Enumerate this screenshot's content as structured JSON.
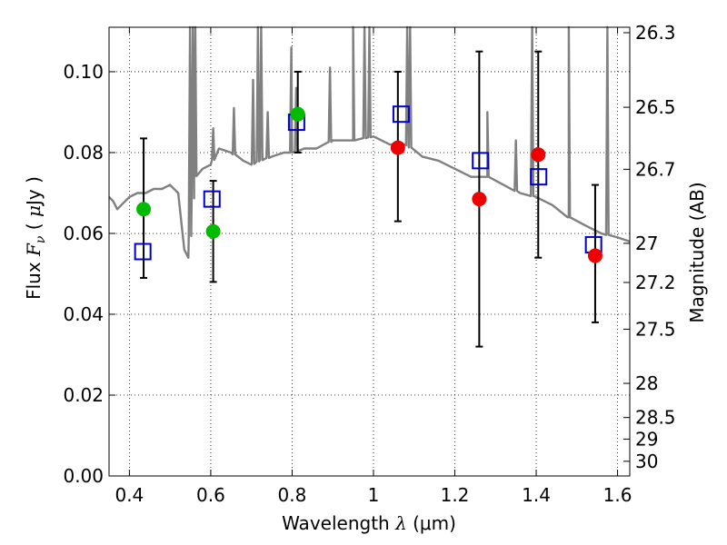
{
  "chart_data": {
    "type": "scatter",
    "xlabel": "Wavelength  λ (μm)",
    "xlabel_parts": {
      "text": "Wavelength  ",
      "symbol": "λ",
      "unit": " (μm)"
    },
    "ylabel": "Flux  Fν (  μJy )",
    "ylabel_parts": {
      "text": "Flux  ",
      "symbol": "F",
      "subscript": "ν",
      "unit_open": " (  ",
      "unit_symbol": "μ",
      "unit": "Jy )"
    },
    "y2label": "Magnitude (AB)",
    "xlim": [
      0.35,
      1.63
    ],
    "ylim": [
      0.0,
      0.111
    ],
    "x_ticks": [
      0.4,
      0.6,
      0.8,
      1.0,
      1.2,
      1.4,
      1.6
    ],
    "x_tick_labels": [
      "0.4",
      "0.6",
      "0.8",
      "1",
      "1.2",
      "1.4",
      "1.6"
    ],
    "y_ticks": [
      0.0,
      0.02,
      0.04,
      0.06,
      0.08,
      0.1
    ],
    "y_tick_labels": [
      "0.00",
      "0.02",
      "0.04",
      "0.06",
      "0.08",
      "0.10"
    ],
    "y2_ticks": [
      {
        "mag": 26.3,
        "label": "26.3"
      },
      {
        "mag": 26.5,
        "label": "26.5"
      },
      {
        "mag": 26.7,
        "label": "26.7"
      },
      {
        "mag": 27.0,
        "label": "27"
      },
      {
        "mag": 27.2,
        "label": "27.2"
      },
      {
        "mag": 27.5,
        "label": "27.5"
      },
      {
        "mag": 28.0,
        "label": "28"
      },
      {
        "mag": 28.5,
        "label": "28.5"
      },
      {
        "mag": 29.0,
        "label": "29"
      },
      {
        "mag": 30.0,
        "label": "30"
      }
    ],
    "grid": true,
    "colors": {
      "model": "#808080",
      "error_bars": "#000000",
      "green_points": "#00bb00",
      "red_points": "#ee0000",
      "blue_squares": "#0000cc"
    },
    "observed": {
      "x": [
        0.435,
        0.606,
        0.814,
        1.06,
        1.26,
        1.405,
        1.545
      ],
      "y": [
        0.066,
        0.0605,
        0.0895,
        0.0812,
        0.0685,
        0.0795,
        0.0545
      ],
      "colors": [
        "green",
        "green",
        "green",
        "red",
        "red",
        "red",
        "red"
      ],
      "yerr_low": [
        0.049,
        0.048,
        0.08,
        0.063,
        0.032,
        0.054,
        0.038
      ],
      "yerr_high": [
        0.0835,
        0.073,
        0.1,
        0.1,
        0.105,
        0.105,
        0.072
      ]
    },
    "model_photometry": {
      "x": [
        0.433,
        0.603,
        0.811,
        1.068,
        1.263,
        1.406,
        1.541
      ],
      "y": [
        0.0555,
        0.0685,
        0.0875,
        0.0895,
        0.078,
        0.074,
        0.0572
      ]
    },
    "model_spectrum": {
      "x": [
        0.35,
        0.36,
        0.37,
        0.38,
        0.39,
        0.4,
        0.42,
        0.44,
        0.46,
        0.48,
        0.5,
        0.52,
        0.535,
        0.545,
        0.56,
        0.58,
        0.6,
        0.62,
        0.65,
        0.68,
        0.7,
        0.72,
        0.75,
        0.78,
        0.8,
        0.83,
        0.86,
        0.9,
        0.95,
        1.0,
        1.04,
        1.08,
        1.12,
        1.16,
        1.2,
        1.24,
        1.28,
        1.32,
        1.36,
        1.4,
        1.44,
        1.48,
        1.52,
        1.56,
        1.6,
        1.63
      ],
      "y": [
        0.069,
        0.068,
        0.066,
        0.067,
        0.068,
        0.069,
        0.07,
        0.07,
        0.071,
        0.071,
        0.072,
        0.07,
        0.056,
        0.054,
        0.074,
        0.076,
        0.077,
        0.081,
        0.08,
        0.078,
        0.077,
        0.078,
        0.079,
        0.08,
        0.08,
        0.081,
        0.081,
        0.083,
        0.083,
        0.084,
        0.082,
        0.082,
        0.079,
        0.078,
        0.076,
        0.074,
        0.074,
        0.072,
        0.07,
        0.069,
        0.067,
        0.064,
        0.062,
        0.06,
        0.059,
        0.058
      ]
    },
    "emission_lines": [
      {
        "x": 0.549,
        "h": 0.111
      },
      {
        "x": 0.556,
        "h": 0.111
      },
      {
        "x": 0.562,
        "h": 0.111
      },
      {
        "x": 0.606,
        "h": 0.086
      },
      {
        "x": 0.657,
        "h": 0.091
      },
      {
        "x": 0.704,
        "h": 0.098
      },
      {
        "x": 0.716,
        "h": 0.111
      },
      {
        "x": 0.724,
        "h": 0.111
      },
      {
        "x": 0.74,
        "h": 0.09
      },
      {
        "x": 0.798,
        "h": 0.106
      },
      {
        "x": 0.81,
        "h": 0.096
      },
      {
        "x": 0.893,
        "h": 0.101
      },
      {
        "x": 0.95,
        "h": 0.111
      },
      {
        "x": 0.978,
        "h": 0.111
      },
      {
        "x": 0.99,
        "h": 0.111
      },
      {
        "x": 1.083,
        "h": 0.111
      },
      {
        "x": 1.09,
        "h": 0.111
      },
      {
        "x": 1.28,
        "h": 0.09
      },
      {
        "x": 1.35,
        "h": 0.083
      },
      {
        "x": 1.39,
        "h": 0.111
      },
      {
        "x": 1.48,
        "h": 0.111
      },
      {
        "x": 1.575,
        "h": 0.111
      }
    ]
  }
}
